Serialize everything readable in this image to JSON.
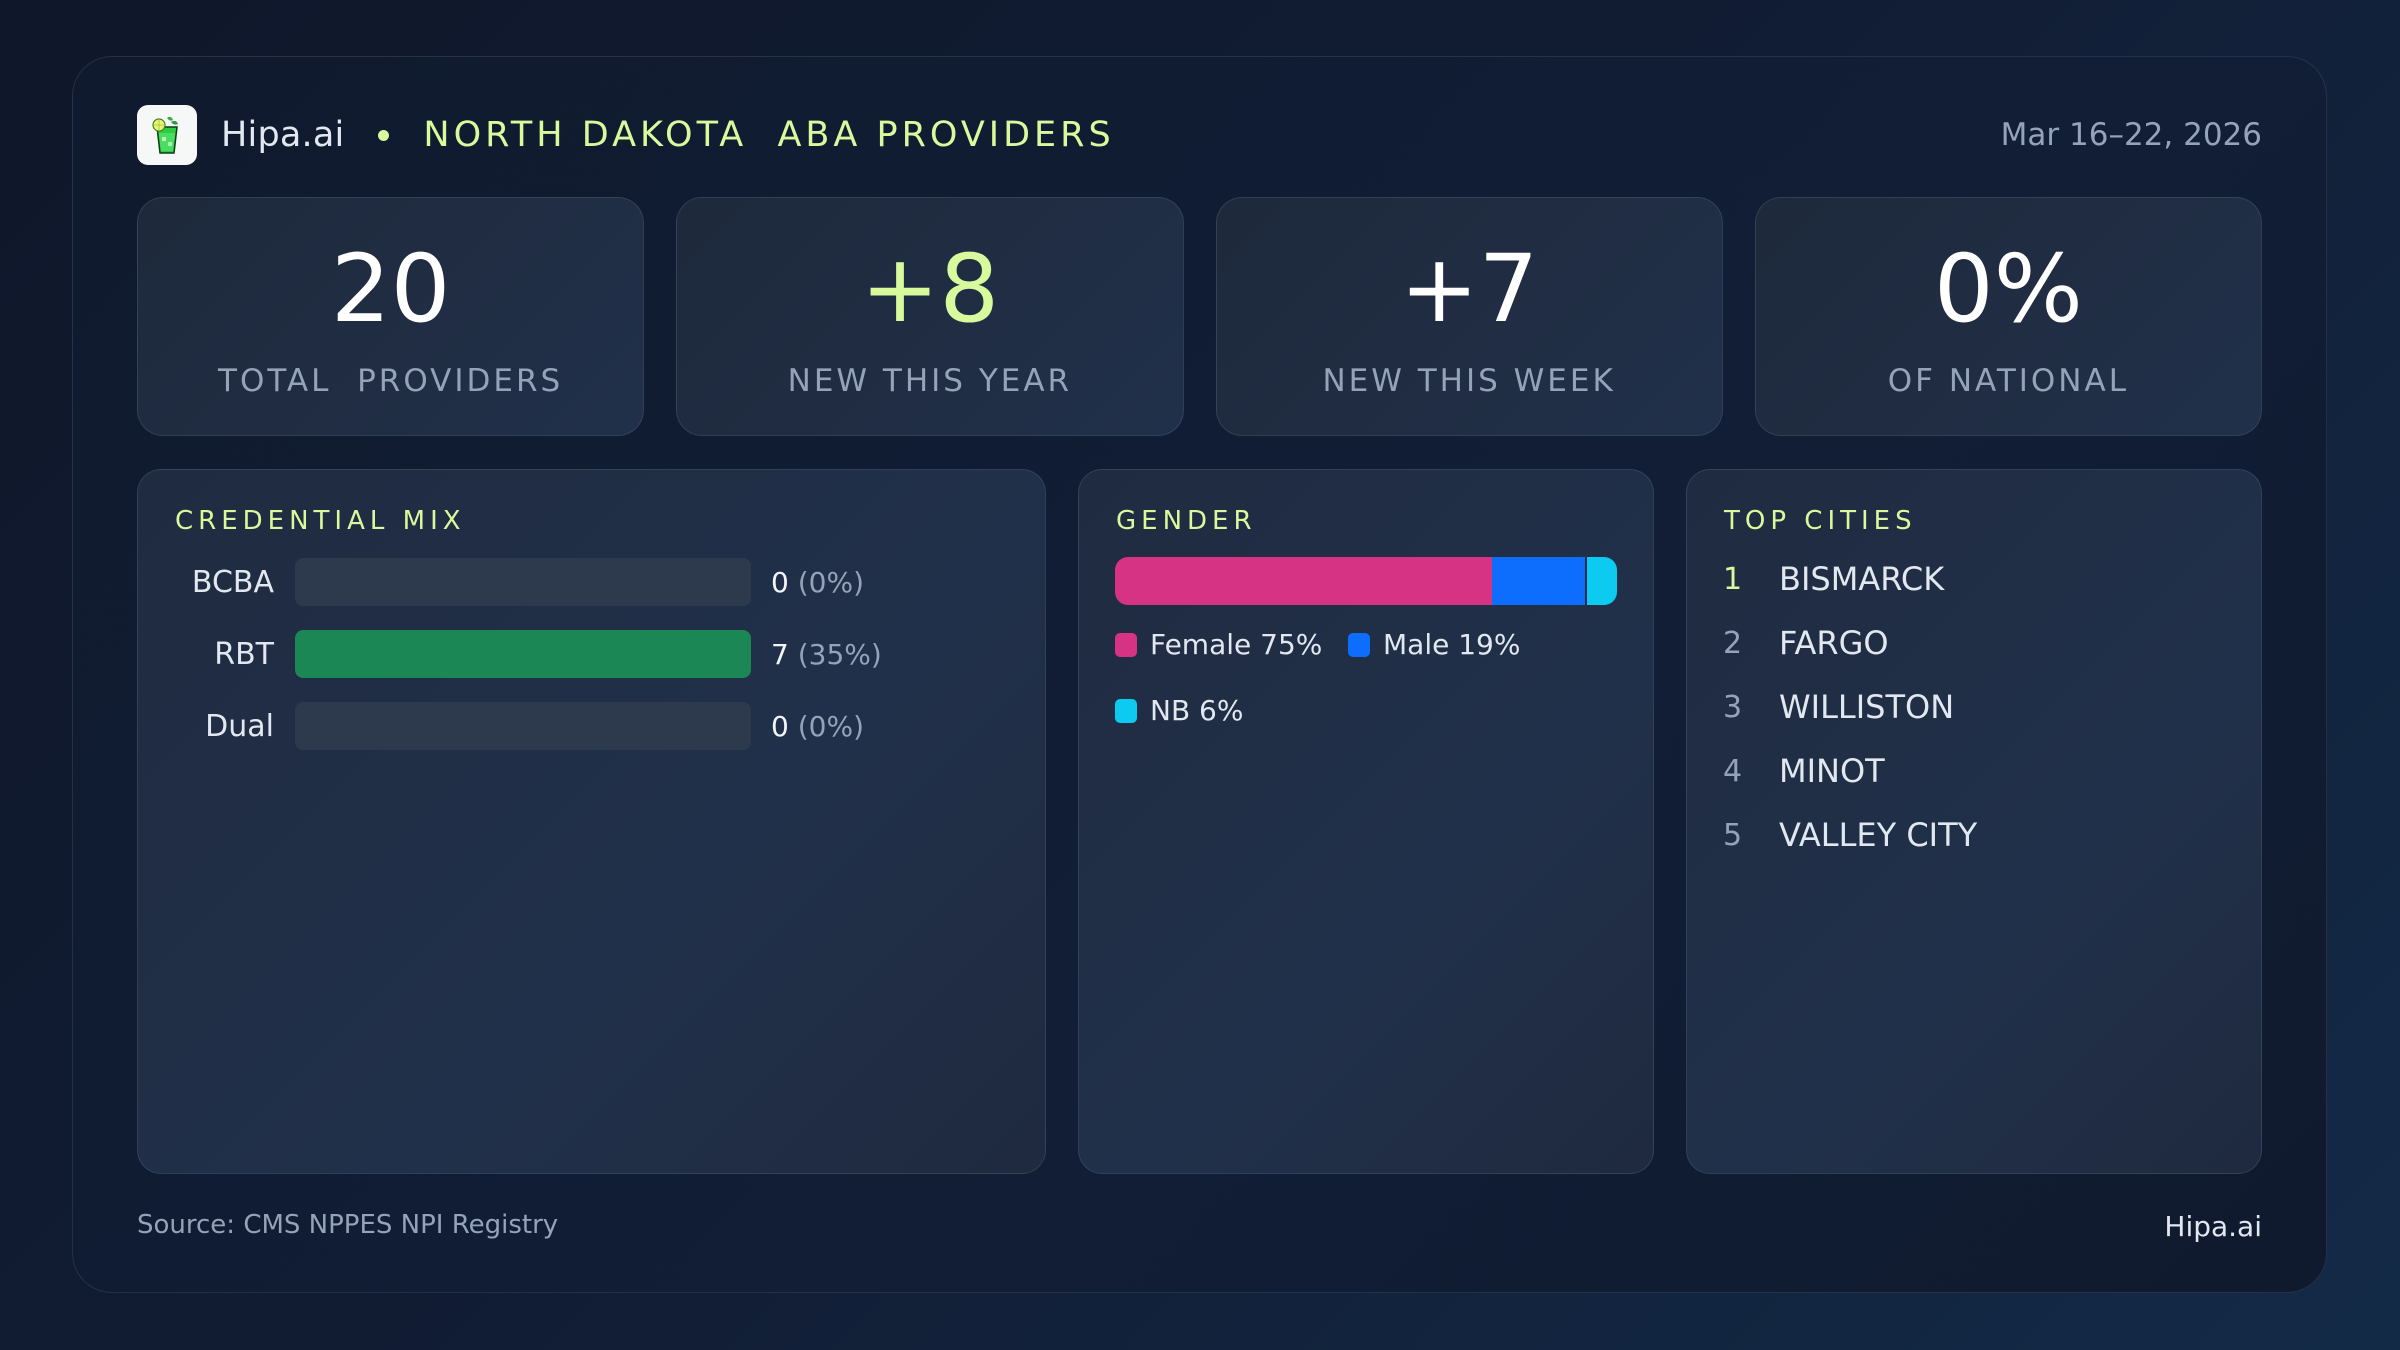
{
  "header": {
    "brand": "Hipa.ai",
    "title": "NORTH DAKOTA  ABA PROVIDERS",
    "date_range": "Mar 16–22, 2026",
    "logo_icon": "mojito-glass-icon"
  },
  "kpis": [
    {
      "value": "20",
      "label": "TOTAL  PROVIDERS",
      "accent": false
    },
    {
      "value": "+8",
      "label": "NEW THIS YEAR",
      "accent": true
    },
    {
      "value": "+7",
      "label": "NEW THIS WEEK",
      "accent": false
    },
    {
      "value": "0%",
      "label": "OF NATIONAL",
      "accent": false
    }
  ],
  "credential_mix": {
    "title": "CREDENTIAL MIX",
    "rows": [
      {
        "label": "BCBA",
        "count": "0",
        "pct": "(0%)",
        "fill_pct": 0
      },
      {
        "label": "RBT",
        "count": "7",
        "pct": "(35%)",
        "fill_pct": 100
      },
      {
        "label": "Dual",
        "count": "0",
        "pct": "(0%)",
        "fill_pct": 0
      }
    ],
    "fill_color": "#1a8754",
    "track_color": "#2d3a4e"
  },
  "gender": {
    "title": "GENDER",
    "segments": [
      {
        "label": "Female 75%",
        "name": "Female",
        "pct": 75,
        "color": "#d63384"
      },
      {
        "label": "Male 19%",
        "name": "Male",
        "pct": 19,
        "color": "#0d6efd"
      },
      {
        "label": "NB 6%",
        "name": "NB",
        "pct": 6,
        "color": "#0dcaf0"
      }
    ]
  },
  "top_cities": {
    "title": "TOP CITIES",
    "items": [
      {
        "rank": "1",
        "name": "BISMARCK"
      },
      {
        "rank": "2",
        "name": "FARGO"
      },
      {
        "rank": "3",
        "name": "WILLISTON"
      },
      {
        "rank": "4",
        "name": "MINOT"
      },
      {
        "rank": "5",
        "name": "VALLEY CITY"
      }
    ]
  },
  "footer": {
    "source": "Source: CMS NPPES NPI Registry",
    "brand": "Hipa.ai"
  },
  "colors": {
    "accent": "#d9f99d",
    "muted_text": "#94a3b8",
    "text": "#e2e8f0"
  },
  "chart_data": [
    {
      "type": "bar",
      "title": "CREDENTIAL MIX",
      "categories": [
        "BCBA",
        "RBT",
        "Dual"
      ],
      "values": [
        0,
        7,
        0
      ],
      "percentages": [
        0,
        35,
        0
      ],
      "orientation": "horizontal"
    },
    {
      "type": "bar",
      "title": "GENDER",
      "stacked": true,
      "categories": [
        "Female",
        "Male",
        "NB"
      ],
      "values": [
        75,
        19,
        6
      ],
      "unit": "%"
    }
  ]
}
